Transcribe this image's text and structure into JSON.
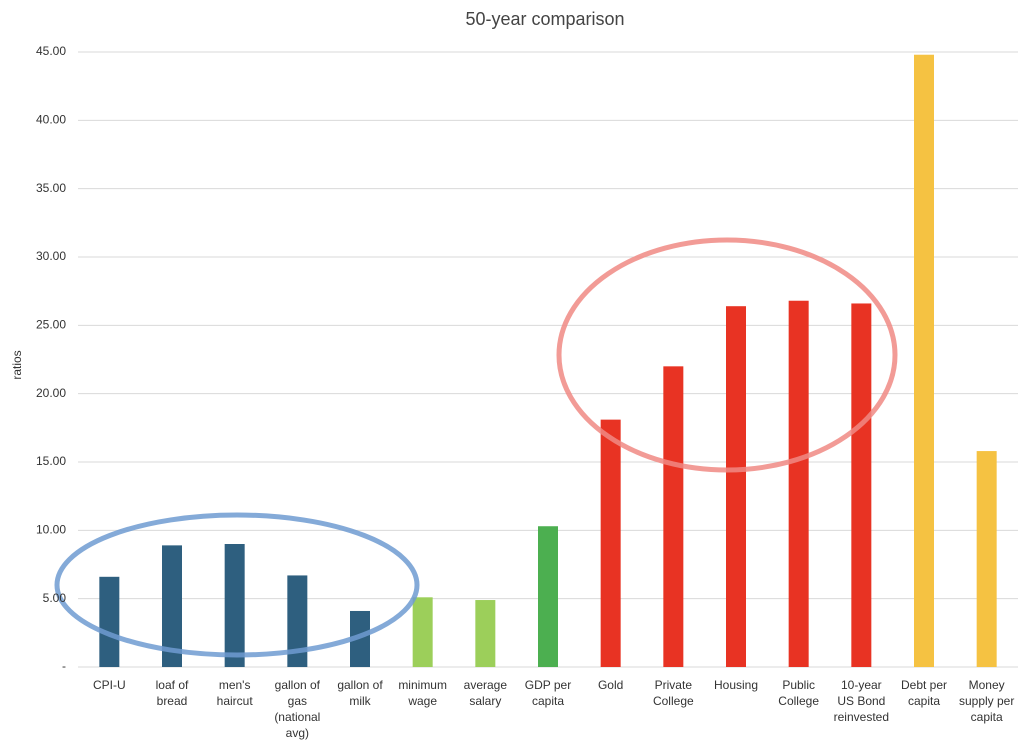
{
  "chart_data": {
    "type": "bar",
    "title": "50-year comparison",
    "y_label": "ratios",
    "categories": [
      "CPI-U",
      "loaf of bread",
      "men's haircut",
      "gallon of gas (national avg)",
      "gallon of milk",
      "minimum wage",
      "average salary",
      "GDP per capita",
      "Gold",
      "Private College",
      "Housing",
      "Public College",
      "10-year US Bond reinvested",
      "Debt per capita",
      "Money supply per capita"
    ],
    "values": [
      6.6,
      8.9,
      9.0,
      6.7,
      4.1,
      5.1,
      4.9,
      10.3,
      18.1,
      22.0,
      26.4,
      26.8,
      26.6,
      44.8,
      15.8
    ],
    "colors": [
      "#2e5f7f",
      "#2e5f7f",
      "#2e5f7f",
      "#2e5f7f",
      "#2e5f7f",
      "#9ccf5a",
      "#9ccf5a",
      "#4caf50",
      "#e83323",
      "#e83323",
      "#e83323",
      "#e83323",
      "#e83323",
      "#f5c242",
      "#f5c242"
    ],
    "ylim": [
      0,
      45
    ],
    "yticks": [
      {
        "value": 0,
        "label": "-"
      },
      {
        "value": 5,
        "label": "5.00"
      },
      {
        "value": 10,
        "label": "10.00"
      },
      {
        "value": 15,
        "label": "15.00"
      },
      {
        "value": 20,
        "label": "20.00"
      },
      {
        "value": 25,
        "label": "25.00"
      },
      {
        "value": 30,
        "label": "30.00"
      },
      {
        "value": 35,
        "label": "35.00"
      },
      {
        "value": 40,
        "label": "40.00"
      },
      {
        "value": 45,
        "label": "45.00"
      }
    ],
    "grid": true
  }
}
